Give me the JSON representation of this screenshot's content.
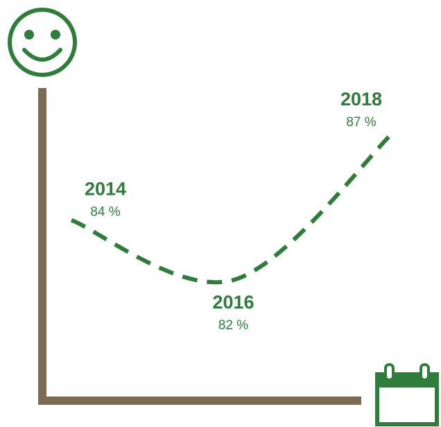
{
  "chart_data": {
    "type": "line",
    "categories": [
      "2014",
      "2016",
      "2018"
    ],
    "values": [
      84,
      82,
      87
    ],
    "value_labels": [
      "84 %",
      "82 %",
      "87 %"
    ],
    "color": "#2e7d3a"
  }
}
